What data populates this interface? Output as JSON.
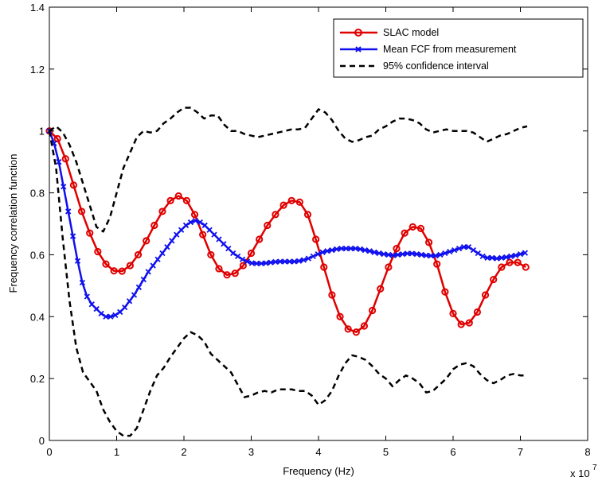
{
  "chart_data": {
    "type": "line",
    "title": "",
    "xlabel": "Frequency (Hz)",
    "ylabel": "Frequency correlation function",
    "x_multiplier_label": "x 10",
    "x_multiplier_exponent": "7",
    "xlim": [
      0,
      8
    ],
    "ylim": [
      0,
      1.4
    ],
    "xticks": [
      0,
      1,
      2,
      3,
      4,
      5,
      6,
      7,
      8
    ],
    "yticks": [
      0,
      0.2,
      0.4,
      0.6,
      0.8,
      1,
      1.2,
      1.4
    ],
    "ytick_labels": [
      "0",
      "0.2",
      "0.4",
      "0.6",
      "0.8",
      "1",
      "1.2",
      "1.4"
    ],
    "grid": false,
    "legend_position": "top-right",
    "series": [
      {
        "name": "SLAC model",
        "color": "#e00000",
        "marker": "circle",
        "line_style": "solid",
        "x": [
          0.0,
          0.12,
          0.24,
          0.36,
          0.48,
          0.6,
          0.72,
          0.84,
          0.96,
          1.08,
          1.2,
          1.32,
          1.44,
          1.56,
          1.68,
          1.8,
          1.92,
          2.04,
          2.16,
          2.28,
          2.4,
          2.52,
          2.64,
          2.76,
          2.88,
          3.0,
          3.12,
          3.24,
          3.36,
          3.48,
          3.6,
          3.72,
          3.84,
          3.96,
          4.08,
          4.2,
          4.32,
          4.44,
          4.56,
          4.68,
          4.8,
          4.92,
          5.04,
          5.16,
          5.28,
          5.4,
          5.52,
          5.64,
          5.76,
          5.88,
          6.0,
          6.12,
          6.24,
          6.36,
          6.48,
          6.6,
          6.72,
          6.84,
          6.96,
          7.08
        ],
        "y": [
          1.0,
          0.975,
          0.91,
          0.825,
          0.74,
          0.67,
          0.61,
          0.57,
          0.548,
          0.547,
          0.565,
          0.6,
          0.645,
          0.695,
          0.74,
          0.775,
          0.79,
          0.775,
          0.73,
          0.665,
          0.6,
          0.555,
          0.535,
          0.54,
          0.565,
          0.605,
          0.65,
          0.695,
          0.73,
          0.76,
          0.775,
          0.77,
          0.73,
          0.65,
          0.56,
          0.47,
          0.4,
          0.36,
          0.35,
          0.37,
          0.42,
          0.49,
          0.56,
          0.62,
          0.67,
          0.69,
          0.685,
          0.64,
          0.57,
          0.48,
          0.41,
          0.375,
          0.38,
          0.415,
          0.47,
          0.52,
          0.56,
          0.575,
          0.575,
          0.56
        ]
      },
      {
        "name": "Mean FCF from measurement",
        "color": "#1010ee",
        "marker": "x",
        "line_style": "solid",
        "x": [
          0.0,
          0.07,
          0.14,
          0.21,
          0.28,
          0.35,
          0.42,
          0.49,
          0.56,
          0.63,
          0.7,
          0.77,
          0.84,
          0.91,
          0.98,
          1.05,
          1.12,
          1.19,
          1.26,
          1.33,
          1.4,
          1.47,
          1.54,
          1.61,
          1.68,
          1.75,
          1.82,
          1.89,
          1.96,
          2.03,
          2.1,
          2.17,
          2.24,
          2.31,
          2.38,
          2.45,
          2.52,
          2.59,
          2.66,
          2.73,
          2.8,
          2.87,
          2.94,
          3.01,
          3.08,
          3.15,
          3.22,
          3.29,
          3.36,
          3.43,
          3.5,
          3.57,
          3.64,
          3.71,
          3.78,
          3.85,
          3.92,
          3.99,
          4.06,
          4.13,
          4.2,
          4.27,
          4.34,
          4.41,
          4.48,
          4.55,
          4.62,
          4.69,
          4.76,
          4.83,
          4.9,
          4.97,
          5.04,
          5.11,
          5.18,
          5.25,
          5.32,
          5.39,
          5.46,
          5.53,
          5.6,
          5.67,
          5.74,
          5.81,
          5.88,
          5.95,
          6.02,
          6.09,
          6.16,
          6.23,
          6.3,
          6.37,
          6.44,
          6.51,
          6.58,
          6.65,
          6.72,
          6.79,
          6.86,
          6.93,
          7.0,
          7.07
        ],
        "y": [
          1.0,
          0.96,
          0.9,
          0.82,
          0.74,
          0.66,
          0.58,
          0.51,
          0.465,
          0.44,
          0.425,
          0.41,
          0.4,
          0.4,
          0.405,
          0.415,
          0.43,
          0.45,
          0.47,
          0.495,
          0.52,
          0.545,
          0.565,
          0.585,
          0.605,
          0.625,
          0.645,
          0.665,
          0.68,
          0.695,
          0.705,
          0.71,
          0.705,
          0.695,
          0.68,
          0.665,
          0.65,
          0.635,
          0.62,
          0.605,
          0.595,
          0.585,
          0.578,
          0.573,
          0.572,
          0.572,
          0.573,
          0.575,
          0.577,
          0.578,
          0.578,
          0.578,
          0.578,
          0.58,
          0.583,
          0.588,
          0.595,
          0.602,
          0.608,
          0.612,
          0.615,
          0.618,
          0.62,
          0.62,
          0.62,
          0.62,
          0.618,
          0.615,
          0.612,
          0.608,
          0.605,
          0.602,
          0.6,
          0.598,
          0.6,
          0.602,
          0.604,
          0.604,
          0.602,
          0.6,
          0.598,
          0.597,
          0.597,
          0.6,
          0.605,
          0.61,
          0.615,
          0.62,
          0.625,
          0.625,
          0.615,
          0.605,
          0.595,
          0.59,
          0.59,
          0.588,
          0.59,
          0.592,
          0.595,
          0.598,
          0.602,
          0.606
        ]
      },
      {
        "name": "95% confidence interval",
        "color": "#000000",
        "marker": "none",
        "line_style": "dashed",
        "x": [
          0.0,
          0.1,
          0.2,
          0.3,
          0.4,
          0.5,
          0.6,
          0.7,
          0.8,
          0.9,
          1.0,
          1.1,
          1.2,
          1.3,
          1.4,
          1.5,
          1.6,
          1.7,
          1.8,
          1.9,
          2.0,
          2.1,
          2.2,
          2.3,
          2.4,
          2.5,
          2.6,
          2.7,
          2.8,
          2.9,
          3.0,
          3.1,
          3.2,
          3.3,
          3.4,
          3.5,
          3.6,
          3.7,
          3.8,
          3.9,
          4.0,
          4.1,
          4.2,
          4.3,
          4.4,
          4.5,
          4.6,
          4.7,
          4.8,
          4.9,
          5.0,
          5.1,
          5.2,
          5.3,
          5.4,
          5.5,
          5.6,
          5.7,
          5.8,
          5.9,
          6.0,
          6.1,
          6.2,
          6.3,
          6.4,
          6.5,
          6.6,
          6.7,
          6.8,
          6.9,
          7.0,
          7.1
        ],
        "y": [
          1.0,
          1.015,
          0.995,
          0.955,
          0.9,
          0.83,
          0.76,
          0.69,
          0.675,
          0.72,
          0.8,
          0.88,
          0.93,
          0.98,
          1.0,
          0.995,
          1.0,
          1.025,
          1.04,
          1.06,
          1.075,
          1.075,
          1.06,
          1.04,
          1.05,
          1.05,
          1.02,
          1.0,
          1.0,
          0.99,
          0.985,
          0.98,
          0.985,
          0.99,
          0.995,
          1.0,
          1.005,
          1.005,
          1.01,
          1.04,
          1.07,
          1.06,
          1.035,
          1.0,
          0.975,
          0.965,
          0.97,
          0.98,
          0.985,
          1.005,
          1.015,
          1.03,
          1.04,
          1.04,
          1.035,
          1.025,
          1.005,
          0.995,
          1.0,
          1.005,
          1.0,
          1.0,
          1.0,
          0.995,
          0.98,
          0.965,
          0.975,
          0.985,
          0.99,
          1.0,
          1.01,
          1.015
        ]
      },
      {
        "name": "",
        "color": "#000000",
        "marker": "none",
        "line_style": "dashed",
        "x": [
          0.0,
          0.1,
          0.2,
          0.3,
          0.4,
          0.5,
          0.6,
          0.7,
          0.8,
          0.9,
          1.0,
          1.1,
          1.2,
          1.3,
          1.4,
          1.5,
          1.6,
          1.7,
          1.8,
          1.9,
          2.0,
          2.1,
          2.2,
          2.3,
          2.4,
          2.5,
          2.6,
          2.7,
          2.8,
          2.9,
          3.0,
          3.1,
          3.2,
          3.3,
          3.4,
          3.5,
          3.6,
          3.7,
          3.8,
          3.9,
          4.0,
          4.1,
          4.2,
          4.3,
          4.4,
          4.5,
          4.6,
          4.7,
          4.8,
          4.9,
          5.0,
          5.1,
          5.2,
          5.3,
          5.4,
          5.5,
          5.6,
          5.7,
          5.8,
          5.9,
          6.0,
          6.1,
          6.2,
          6.3,
          6.4,
          6.5,
          6.6,
          6.7,
          6.8,
          6.9,
          7.0,
          7.1
        ],
        "y": [
          1.0,
          0.88,
          0.65,
          0.45,
          0.3,
          0.22,
          0.19,
          0.16,
          0.1,
          0.06,
          0.03,
          0.015,
          0.015,
          0.04,
          0.1,
          0.16,
          0.21,
          0.235,
          0.27,
          0.3,
          0.33,
          0.35,
          0.34,
          0.32,
          0.28,
          0.26,
          0.24,
          0.22,
          0.18,
          0.14,
          0.145,
          0.155,
          0.16,
          0.155,
          0.165,
          0.165,
          0.165,
          0.16,
          0.16,
          0.145,
          0.115,
          0.13,
          0.16,
          0.21,
          0.25,
          0.275,
          0.27,
          0.26,
          0.24,
          0.215,
          0.2,
          0.175,
          0.195,
          0.21,
          0.2,
          0.185,
          0.155,
          0.16,
          0.18,
          0.2,
          0.23,
          0.245,
          0.25,
          0.24,
          0.215,
          0.195,
          0.185,
          0.195,
          0.21,
          0.215,
          0.21,
          0.21
        ]
      }
    ]
  }
}
